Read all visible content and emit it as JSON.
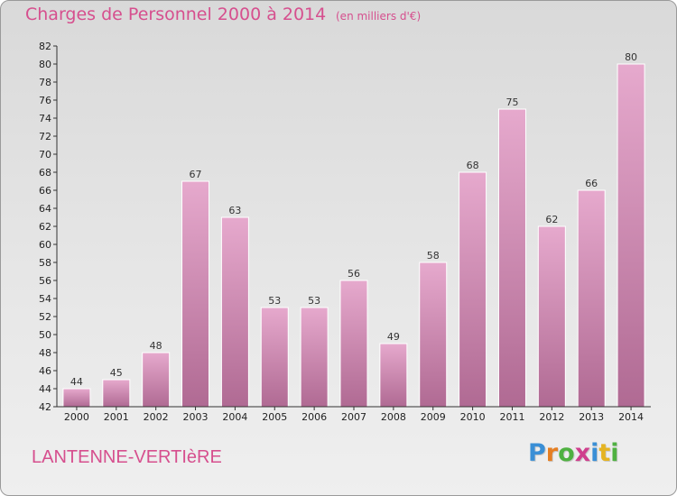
{
  "header": {
    "title": "Charges de Personnel 2000 à 2014",
    "subtitle": "(en milliers d'€)"
  },
  "footer": {
    "place": "LANTENNE-VERTIèRE",
    "logo_letters": [
      "P",
      "r",
      "o",
      "x",
      "i",
      "t",
      "i"
    ],
    "logo_colors": [
      "#3a8fd6",
      "#e57e22",
      "#4fb141",
      "#cf3f8d",
      "#3a8fd6",
      "#e5b422",
      "#4fb141"
    ]
  },
  "colors": {
    "bar_top": "#e6a9cd",
    "bar_bottom": "#b06a93",
    "accent": "#d64f8e"
  },
  "chart_data": {
    "type": "bar",
    "categories": [
      "2000",
      "2001",
      "2002",
      "2003",
      "2004",
      "2005",
      "2006",
      "2007",
      "2008",
      "2009",
      "2010",
      "2011",
      "2012",
      "2013",
      "2014"
    ],
    "values": [
      44,
      45,
      48,
      67,
      63,
      53,
      53,
      56,
      49,
      58,
      68,
      75,
      62,
      66,
      80
    ],
    "ylim": [
      42,
      82
    ],
    "yticks": [
      42,
      44,
      46,
      48,
      50,
      52,
      54,
      56,
      58,
      60,
      62,
      64,
      66,
      68,
      70,
      72,
      74,
      76,
      78,
      80,
      82
    ],
    "grid": false,
    "data_labels": true
  }
}
